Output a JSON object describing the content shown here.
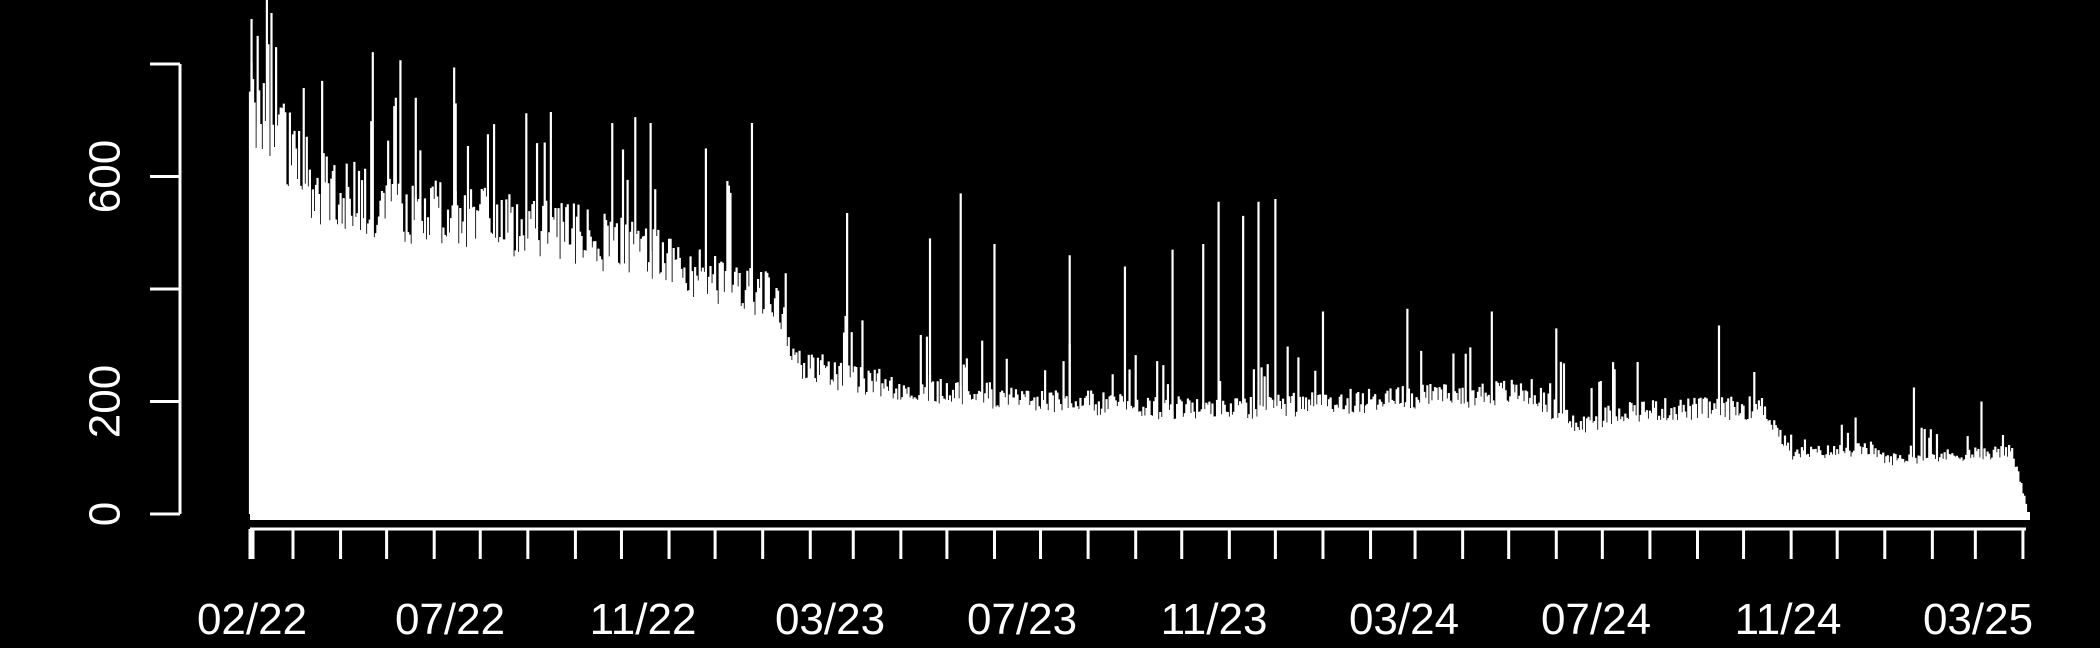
{
  "chart_data": {
    "type": "bar",
    "title": "",
    "xlabel": "",
    "ylabel": "",
    "ylim": [
      0,
      880
    ],
    "y_ticks": [
      "0",
      "200",
      "600"
    ],
    "x_tick_labels": [
      "02/22",
      "07/22",
      "11/22",
      "03/23",
      "07/23",
      "11/23",
      "03/24",
      "07/24",
      "11/24",
      "03/25"
    ],
    "x_start_date": "2022-02-01",
    "x_end_date": "2025-04-03",
    "colors": {
      "background": "#000000",
      "foreground": "#ffffff"
    },
    "grid": false,
    "legend": "none",
    "trend": [
      {
        "date": "2022-02-01",
        "value": 760
      },
      {
        "date": "2022-02-20",
        "value": 700
      },
      {
        "date": "2022-03-15",
        "value": 600
      },
      {
        "date": "2022-05-01",
        "value": 565
      },
      {
        "date": "2022-07-01",
        "value": 540
      },
      {
        "date": "2022-08-15",
        "value": 520
      },
      {
        "date": "2022-10-01",
        "value": 495
      },
      {
        "date": "2022-11-15",
        "value": 450
      },
      {
        "date": "2023-01-10",
        "value": 395
      },
      {
        "date": "2023-01-25",
        "value": 280
      },
      {
        "date": "2023-03-01",
        "value": 245
      },
      {
        "date": "2023-05-01",
        "value": 225
      },
      {
        "date": "2023-07-01",
        "value": 210
      },
      {
        "date": "2023-09-15",
        "value": 195
      },
      {
        "date": "2023-11-01",
        "value": 195
      },
      {
        "date": "2023-12-15",
        "value": 200
      },
      {
        "date": "2024-03-01",
        "value": 215
      },
      {
        "date": "2024-05-15",
        "value": 225
      },
      {
        "date": "2024-06-15",
        "value": 160
      },
      {
        "date": "2024-07-15",
        "value": 190
      },
      {
        "date": "2024-10-15",
        "value": 195
      },
      {
        "date": "2024-11-01",
        "value": 110
      },
      {
        "date": "2024-12-25",
        "value": 120
      },
      {
        "date": "2025-01-01",
        "value": 100
      },
      {
        "date": "2025-03-25",
        "value": 115
      },
      {
        "date": "2025-04-03",
        "value": 20
      }
    ],
    "spikes": [
      {
        "date": "2022-02-02",
        "value": 880
      },
      {
        "date": "2022-02-06",
        "value": 850
      },
      {
        "date": "2022-02-13",
        "value": 835
      },
      {
        "date": "2022-02-18",
        "value": 830
      },
      {
        "date": "2022-03-20",
        "value": 770
      },
      {
        "date": "2022-05-20",
        "value": 740
      },
      {
        "date": "2022-06-15",
        "value": 730
      },
      {
        "date": "2022-09-25",
        "value": 695
      },
      {
        "date": "2022-10-20",
        "value": 695
      },
      {
        "date": "2022-11-25",
        "value": 650
      },
      {
        "date": "2022-12-25",
        "value": 695
      },
      {
        "date": "2023-02-25",
        "value": 535
      },
      {
        "date": "2023-04-20",
        "value": 490
      },
      {
        "date": "2023-05-10",
        "value": 570
      },
      {
        "date": "2023-06-01",
        "value": 480
      },
      {
        "date": "2023-07-20",
        "value": 460
      },
      {
        "date": "2023-08-25",
        "value": 440
      },
      {
        "date": "2023-09-25",
        "value": 470
      },
      {
        "date": "2023-10-15",
        "value": 480
      },
      {
        "date": "2023-10-25",
        "value": 555
      },
      {
        "date": "2023-11-10",
        "value": 530
      },
      {
        "date": "2023-11-20",
        "value": 555
      },
      {
        "date": "2023-12-01",
        "value": 560
      },
      {
        "date": "2024-01-01",
        "value": 360
      },
      {
        "date": "2024-02-25",
        "value": 365
      },
      {
        "date": "2024-04-20",
        "value": 360
      },
      {
        "date": "2024-06-01",
        "value": 330
      },
      {
        "date": "2024-09-15",
        "value": 335
      },
      {
        "date": "2025-01-20",
        "value": 225
      },
      {
        "date": "2025-03-05",
        "value": 200
      }
    ]
  }
}
